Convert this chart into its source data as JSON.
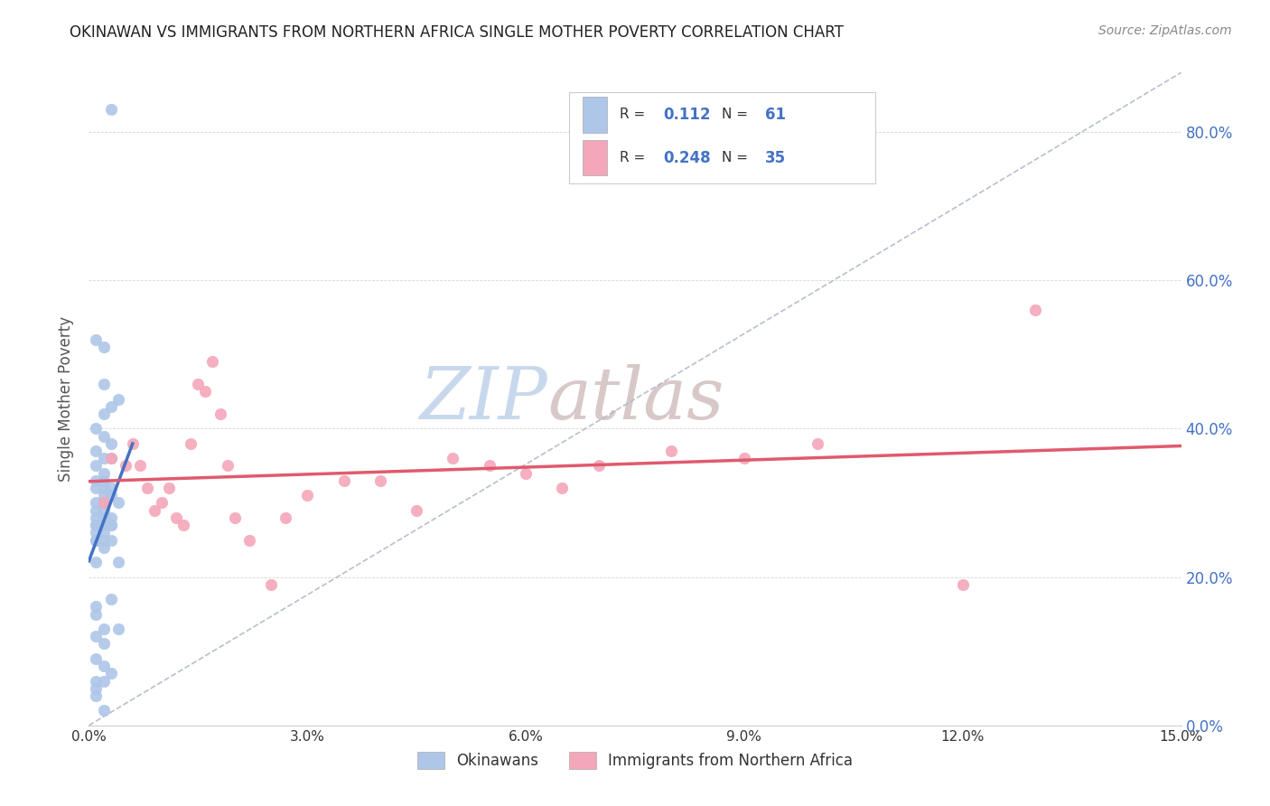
{
  "title": "OKINAWAN VS IMMIGRANTS FROM NORTHERN AFRICA SINGLE MOTHER POVERTY CORRELATION CHART",
  "source": "Source: ZipAtlas.com",
  "xlabel_ticks": [
    "0.0%",
    "3.0%",
    "6.0%",
    "9.0%",
    "12.0%",
    "15.0%"
  ],
  "xlabel_vals": [
    0.0,
    0.03,
    0.06,
    0.09,
    0.12,
    0.15
  ],
  "ylabel_ticks": [
    "0.0%",
    "20.0%",
    "40.0%",
    "60.0%",
    "80.0%"
  ],
  "ylabel_vals": [
    0.0,
    0.2,
    0.4,
    0.6,
    0.8
  ],
  "xlim": [
    0.0,
    0.15
  ],
  "ylim": [
    0.0,
    0.88
  ],
  "okinawan_R": "0.112",
  "okinawan_N": "61",
  "northern_africa_R": "0.248",
  "northern_africa_N": "35",
  "okinawan_color": "#aec6e8",
  "northern_africa_color": "#f4a7b9",
  "trendline_okinawan_color": "#4472c4",
  "trendline_northern_africa_color": "#e05a6e",
  "diagonal_color": "#b0b8c8",
  "watermark_zip_color": "#c8d8ec",
  "watermark_atlas_color": "#d8c8c8",
  "okinawan_x": [
    0.003,
    0.001,
    0.002,
    0.002,
    0.004,
    0.003,
    0.002,
    0.001,
    0.002,
    0.003,
    0.001,
    0.002,
    0.003,
    0.001,
    0.002,
    0.002,
    0.001,
    0.003,
    0.002,
    0.001,
    0.002,
    0.003,
    0.004,
    0.001,
    0.002,
    0.002,
    0.001,
    0.002,
    0.003,
    0.001,
    0.002,
    0.002,
    0.003,
    0.001,
    0.004,
    0.002,
    0.003,
    0.001,
    0.002,
    0.001,
    0.001,
    0.002,
    0.003,
    0.001,
    0.002,
    0.001,
    0.003,
    0.001,
    0.001,
    0.002,
    0.004,
    0.001,
    0.002,
    0.001,
    0.002,
    0.003,
    0.001,
    0.002,
    0.001,
    0.001,
    0.002
  ],
  "okinawan_y": [
    0.83,
    0.52,
    0.51,
    0.46,
    0.44,
    0.43,
    0.42,
    0.4,
    0.39,
    0.38,
    0.37,
    0.36,
    0.36,
    0.35,
    0.34,
    0.33,
    0.33,
    0.32,
    0.32,
    0.32,
    0.31,
    0.31,
    0.3,
    0.3,
    0.3,
    0.3,
    0.29,
    0.29,
    0.28,
    0.28,
    0.28,
    0.27,
    0.27,
    0.27,
    0.22,
    0.27,
    0.27,
    0.27,
    0.26,
    0.26,
    0.25,
    0.25,
    0.25,
    0.25,
    0.24,
    0.22,
    0.17,
    0.16,
    0.15,
    0.13,
    0.13,
    0.12,
    0.11,
    0.09,
    0.08,
    0.07,
    0.06,
    0.06,
    0.05,
    0.04,
    0.02
  ],
  "northern_africa_x": [
    0.002,
    0.003,
    0.005,
    0.006,
    0.007,
    0.008,
    0.009,
    0.01,
    0.011,
    0.012,
    0.013,
    0.014,
    0.015,
    0.016,
    0.017,
    0.018,
    0.019,
    0.02,
    0.022,
    0.025,
    0.027,
    0.03,
    0.035,
    0.04,
    0.045,
    0.05,
    0.055,
    0.06,
    0.065,
    0.07,
    0.08,
    0.09,
    0.1,
    0.12,
    0.13
  ],
  "northern_africa_y": [
    0.3,
    0.36,
    0.35,
    0.38,
    0.35,
    0.32,
    0.29,
    0.3,
    0.32,
    0.28,
    0.27,
    0.38,
    0.46,
    0.45,
    0.49,
    0.42,
    0.35,
    0.28,
    0.25,
    0.19,
    0.28,
    0.31,
    0.33,
    0.33,
    0.29,
    0.36,
    0.35,
    0.34,
    0.32,
    0.35,
    0.37,
    0.36,
    0.38,
    0.19,
    0.56
  ]
}
